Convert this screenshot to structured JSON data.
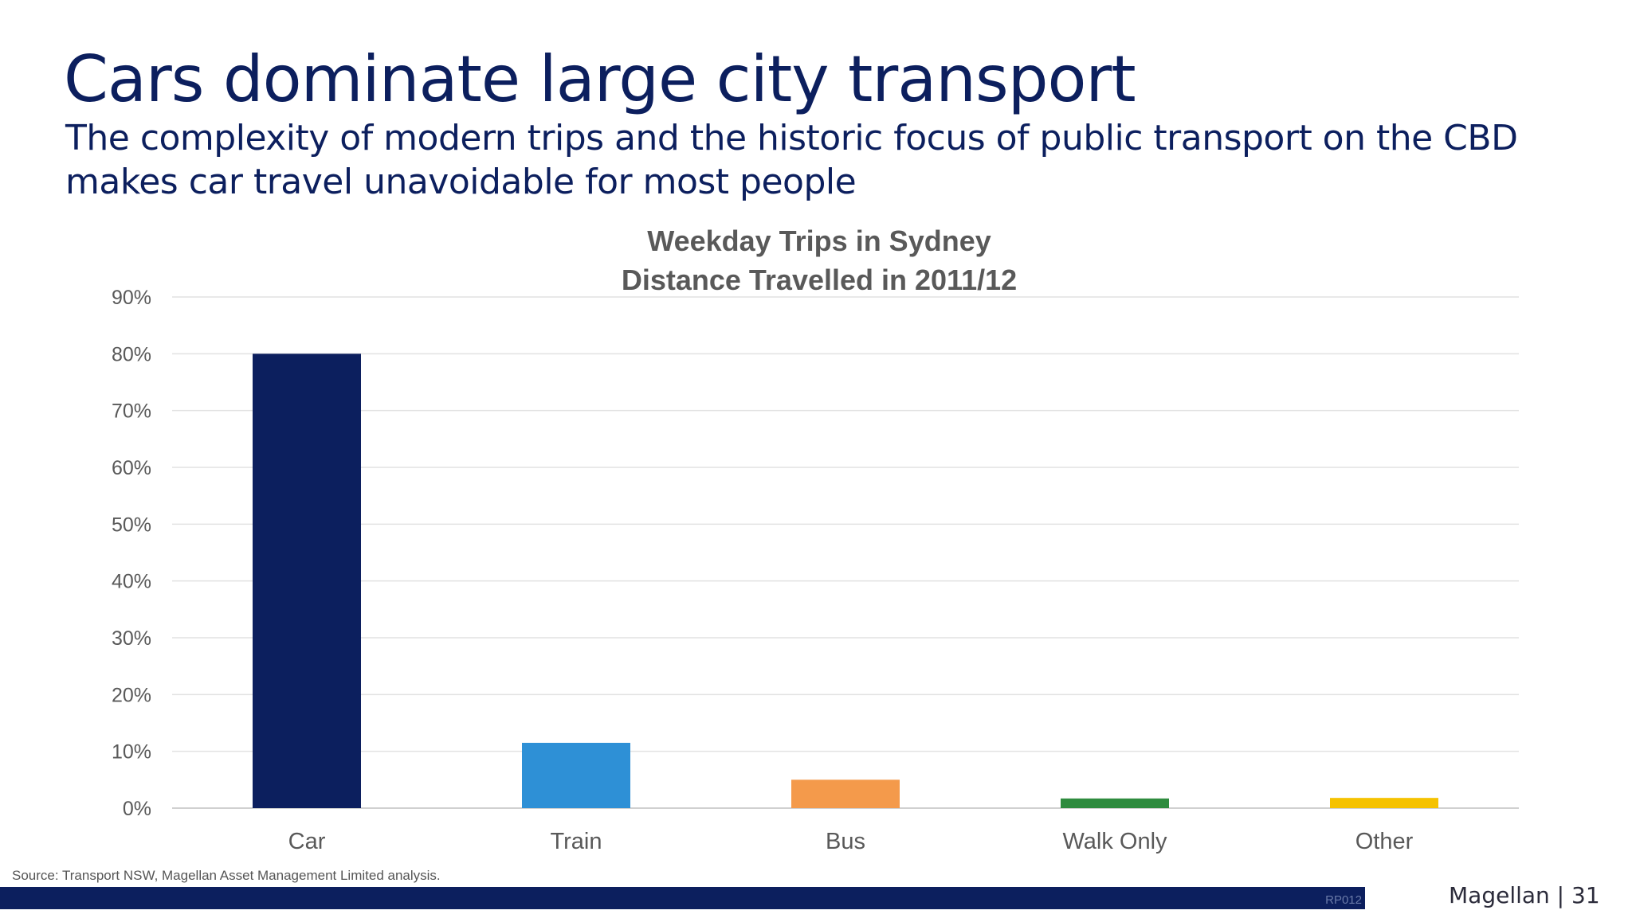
{
  "slide": {
    "title": "Cars dominate large city transport",
    "subtitle": "The complexity of modern trips and the historic focus of public transport on the CBD makes car travel unavoidable for most people",
    "source": "Source: Transport NSW, Magellan Asset Management Limited analysis.",
    "footer_code": "RP012",
    "page_label": "Magellan | 31"
  },
  "chart_data": {
    "type": "bar",
    "title": "Weekday Trips in Sydney",
    "subtitle": "Distance Travelled in 2011/12",
    "categories": [
      "Car",
      "Train",
      "Bus",
      "Walk Only",
      "Other"
    ],
    "values": [
      0.8,
      0.115,
      0.05,
      0.017,
      0.018
    ],
    "colors": [
      "#0c1f5e",
      "#2e90d6",
      "#f49a4b",
      "#2e8b3e",
      "#f5c200"
    ],
    "ylim": [
      0,
      0.9
    ],
    "yticks": [
      "0%",
      "10%",
      "20%",
      "30%",
      "40%",
      "50%",
      "60%",
      "70%",
      "80%",
      "90%"
    ],
    "grid": true,
    "legend": "none"
  }
}
